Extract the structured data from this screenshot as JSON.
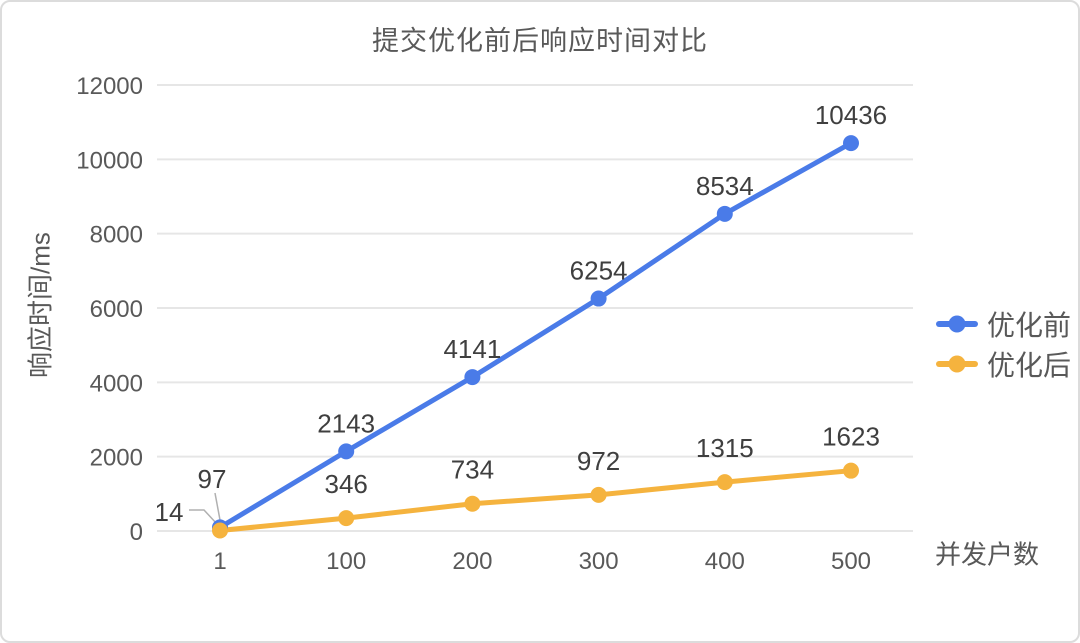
{
  "chart_data": {
    "type": "line",
    "title": "提交优化前后响应时间对比",
    "xlabel": "并发户数",
    "ylabel": "响应时间/ms",
    "categories": [
      "1",
      "100",
      "200",
      "300",
      "400",
      "500"
    ],
    "series": [
      {
        "name": "优化前",
        "color": "#4a7be8",
        "values": [
          97,
          2143,
          4141,
          6254,
          8534,
          10436
        ]
      },
      {
        "name": "优化后",
        "color": "#f5b33e",
        "values": [
          14,
          346,
          734,
          972,
          1315,
          1623
        ]
      }
    ],
    "y_ticks": [
      0,
      2000,
      4000,
      6000,
      8000,
      10000,
      12000
    ],
    "ylim": [
      0,
      12000
    ],
    "grid": "horizontal-only",
    "legend_position": "right",
    "data_labels_visible": true,
    "colors": {
      "grid_line": "#e6e6e6",
      "axis_text": "#595959",
      "data_label_text": "#3f3f3f",
      "leader_line": "#b0b0b0",
      "card_border": "#dcdcdc",
      "background": "#ffffff"
    }
  }
}
